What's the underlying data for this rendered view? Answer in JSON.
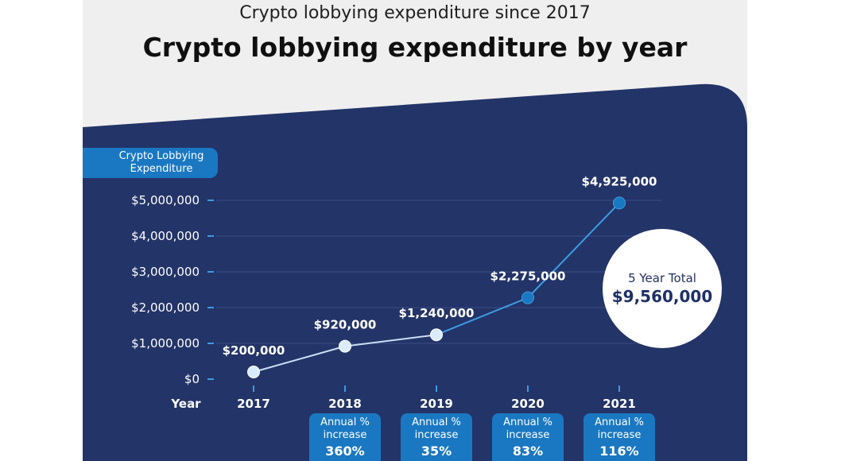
{
  "supertitle": "Crypto lobbying expenditure since 2017",
  "title": "Crypto lobbying expenditure by year",
  "ylabel": "Crypto Lobbying Expenditure",
  "xlabel": "Year",
  "total": {
    "label": "5 Year Total",
    "value": "$9,560,000"
  },
  "colors": {
    "panel": "#233468",
    "accent": "#1a78c2",
    "line": "#3d9be0",
    "point_light": "#d9ecfb",
    "title": "#101010"
  },
  "chart_data": {
    "type": "line",
    "title": "Crypto lobbying expenditure by year",
    "xlabel": "Year",
    "ylabel": "Crypto Lobbying Expenditure",
    "x": [
      "2017",
      "2018",
      "2019",
      "2020",
      "2021"
    ],
    "values": [
      200000,
      920000,
      1240000,
      2275000,
      4925000
    ],
    "data_labels": [
      "$200,000",
      "$920,000",
      "$1,240,000",
      "$2,275,000",
      "$4,925,000"
    ],
    "ylim": [
      0,
      5000000
    ],
    "yticks": [
      0,
      1000000,
      2000000,
      3000000,
      4000000,
      5000000
    ],
    "ytick_labels": [
      "$0",
      "$1,000,000",
      "$2,000,000",
      "$3,000,000",
      "$4,000,000",
      "$5,000,000"
    ],
    "grid": true,
    "annual_increase": [
      {
        "label": "Annual % increase",
        "value": "360%"
      },
      {
        "label": "Annual % increase",
        "value": "35%"
      },
      {
        "label": "Annual % increase",
        "value": "83%"
      },
      {
        "label": "Annual % increase",
        "value": "116%"
      }
    ]
  }
}
